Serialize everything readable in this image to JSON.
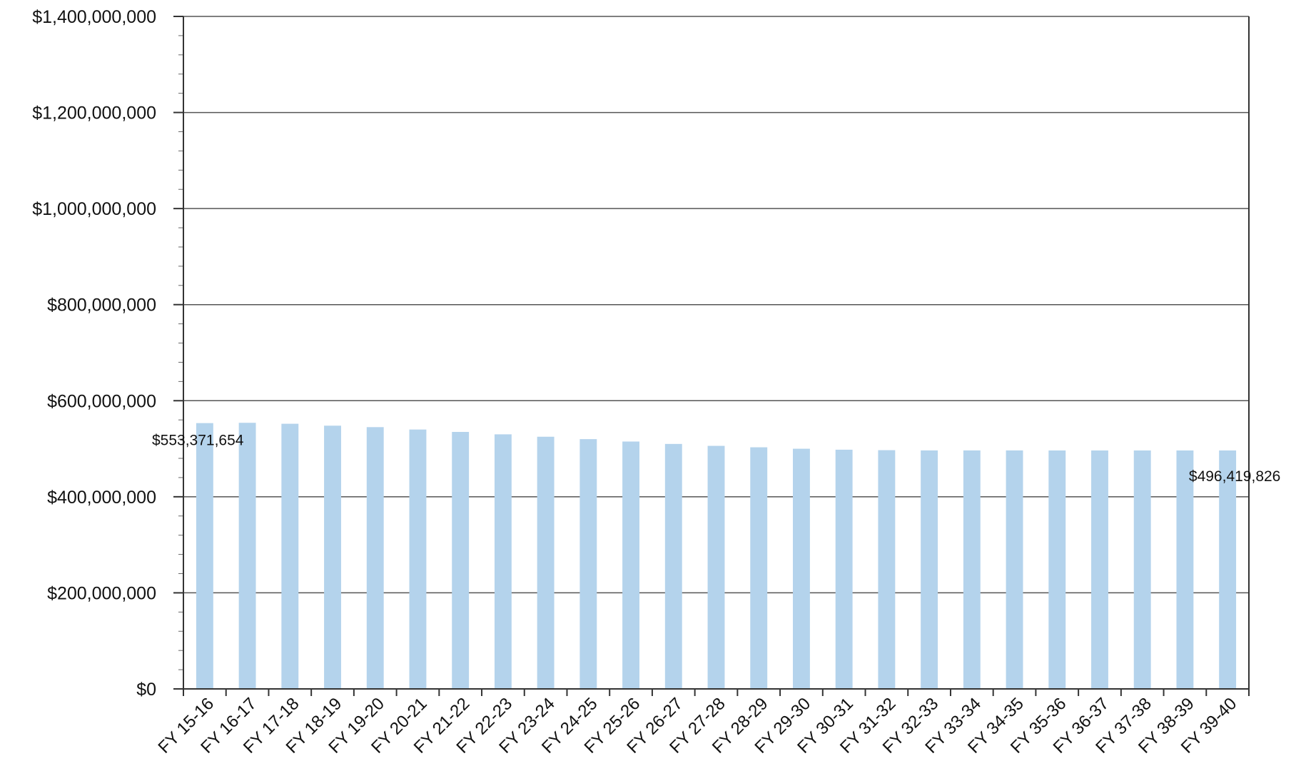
{
  "chart_data": {
    "type": "bar",
    "title": "",
    "xlabel": "",
    "ylabel": "",
    "ylim": [
      0,
      1400000000
    ],
    "yticks": [
      0,
      200000000,
      400000000,
      600000000,
      800000000,
      1000000000,
      1200000000,
      1400000000
    ],
    "ytick_labels": [
      "$0",
      "$200,000,000",
      "$400,000,000",
      "$600,000,000",
      "$800,000,000",
      "$1,000,000,000",
      "$1,200,000,000",
      "$1,400,000,000"
    ],
    "grid": true,
    "legend": "none",
    "bar_color": "#b4d3ec",
    "categories": [
      "FY 15-16",
      "FY 16-17",
      "FY 17-18",
      "FY 18-19",
      "FY 19-20",
      "FY 20-21",
      "FY 21-22",
      "FY 22-23",
      "FY 23-24",
      "FY 24-25",
      "FY 25-26",
      "FY 26-27",
      "FY 27-28",
      "FY 28-29",
      "FY 29-30",
      "FY 30-31",
      "FY 31-32",
      "FY 32-33",
      "FY 33-34",
      "FY 34-35",
      "FY 35-36",
      "FY 36-37",
      "FY 37-38",
      "FY 38-39",
      "FY 39-40"
    ],
    "values": [
      553371654,
      554000000,
      552000000,
      548000000,
      545000000,
      540000000,
      535000000,
      530000000,
      525000000,
      520000000,
      515000000,
      510000000,
      506000000,
      503000000,
      500000000,
      498000000,
      497000000,
      496500000,
      496500000,
      496500000,
      496400000,
      496400000,
      496400000,
      496400000,
      496419826
    ],
    "data_labels": [
      {
        "index": 0,
        "text": "$553,371,654"
      },
      {
        "index": 24,
        "text": "$496,419,826"
      }
    ]
  }
}
